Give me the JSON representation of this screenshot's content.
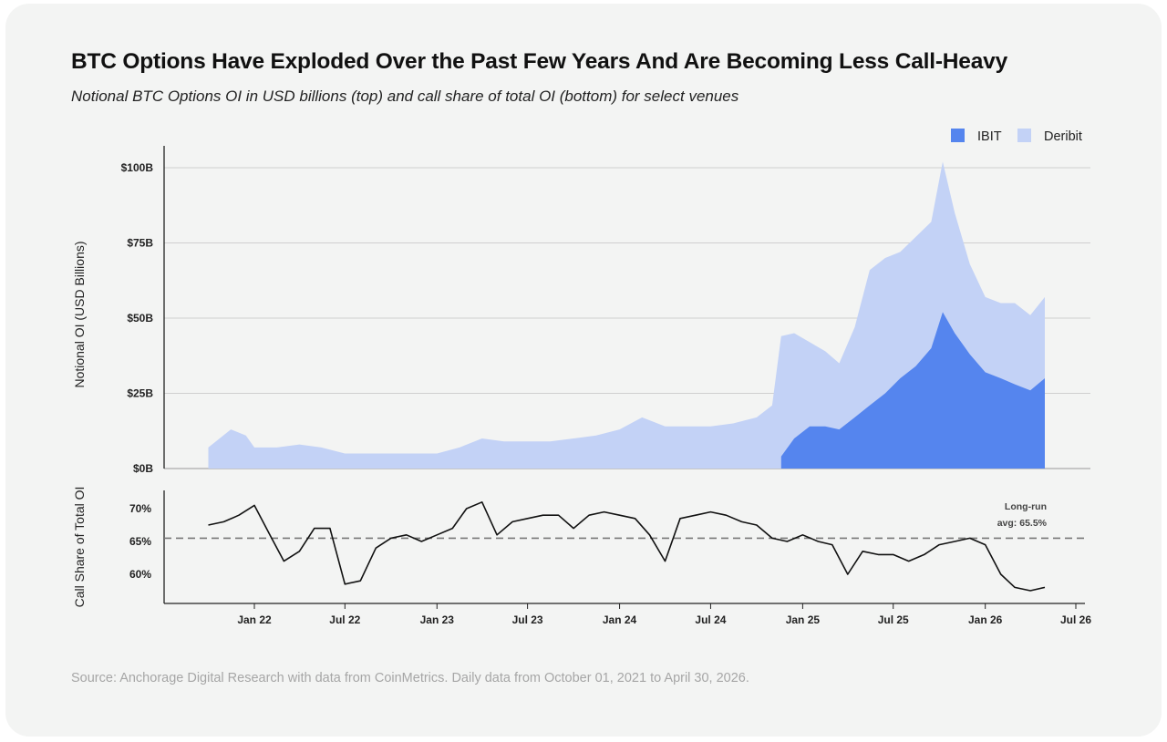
{
  "header": {
    "title": "BTC Options Have Exploded Over the Past Few Years And Are Becoming Less Call-Heavy",
    "subtitle": "Notional BTC Options OI in USD billions (top) and call share of total OI (bottom) for select venues"
  },
  "footer": {
    "source": "Source: Anchorage Digital Research with data from CoinMetrics. Daily data from October 01, 2021 to April 30, 2026."
  },
  "chart_data": [
    {
      "type": "area",
      "stacked": true,
      "ylabel": "Notional OI (USD Billions)",
      "ylim": [
        0,
        100
      ],
      "y_tick_labels": [
        "$0B",
        "$25B",
        "$50B",
        "$75B",
        "$100B"
      ],
      "y_ticks": [
        0,
        25,
        50,
        75,
        100
      ],
      "grid": true,
      "legend": "top-right",
      "colors": {
        "IBIT": "#5585ee",
        "Deribit": "#c3d2f6"
      },
      "x": [
        "2021-10-01",
        "2021-11-15",
        "2021-12-15",
        "2022-01-01",
        "2022-02-15",
        "2022-04-01",
        "2022-05-15",
        "2022-07-01",
        "2022-08-15",
        "2022-10-01",
        "2022-11-15",
        "2023-01-01",
        "2023-02-15",
        "2023-04-01",
        "2023-05-15",
        "2023-07-01",
        "2023-08-15",
        "2023-10-01",
        "2023-11-15",
        "2024-01-01",
        "2024-02-15",
        "2024-04-01",
        "2024-05-15",
        "2024-07-01",
        "2024-08-15",
        "2024-10-01",
        "2024-11-01",
        "2024-11-19",
        "2024-12-15",
        "2025-01-15",
        "2025-02-15",
        "2025-03-15",
        "2025-04-15",
        "2025-05-15",
        "2025-06-15",
        "2025-07-15",
        "2025-08-15",
        "2025-09-15",
        "2025-10-08",
        "2025-11-01",
        "2025-12-01",
        "2026-01-01",
        "2026-02-01",
        "2026-03-01",
        "2026-04-01",
        "2026-04-30"
      ],
      "series": [
        {
          "name": "IBIT",
          "values": [
            null,
            null,
            null,
            null,
            null,
            null,
            null,
            null,
            null,
            null,
            null,
            null,
            null,
            null,
            null,
            null,
            null,
            null,
            null,
            null,
            null,
            null,
            null,
            null,
            null,
            null,
            null,
            4,
            10,
            14,
            14,
            13,
            17,
            21,
            25,
            30,
            34,
            40,
            52,
            45,
            38,
            32,
            30,
            28,
            26,
            30
          ]
        },
        {
          "name": "Deribit",
          "values": [
            7,
            13,
            11,
            7,
            7,
            8,
            7,
            5,
            5,
            5,
            5,
            5,
            7,
            10,
            9,
            9,
            9,
            10,
            11,
            13,
            17,
            14,
            14,
            14,
            15,
            17,
            21,
            40,
            35,
            28,
            25,
            22,
            30,
            45,
            45,
            42,
            43,
            42,
            50,
            40,
            30,
            25,
            25,
            27,
            25,
            27
          ]
        }
      ]
    },
    {
      "type": "line",
      "ylabel": "Call Share of Total OI",
      "ylim": [
        56,
        72
      ],
      "y_tick_labels": [
        "60%",
        "65%",
        "70%"
      ],
      "y_ticks": [
        60,
        65,
        70
      ],
      "x_tick_labels": [
        "Jan 22",
        "Jul 22",
        "Jan 23",
        "Jul 23",
        "Jan 24",
        "Jul 24",
        "Jan 25",
        "Jul 25",
        "Jan 26",
        "Jul 26"
      ],
      "x_ticks": [
        "2022-01-01",
        "2022-07-01",
        "2023-01-01",
        "2023-07-01",
        "2024-01-01",
        "2024-07-01",
        "2025-01-01",
        "2025-07-01",
        "2026-01-01",
        "2026-07-01"
      ],
      "reference_line": {
        "value": 65.5,
        "label_line1": "Long-run",
        "label_line2": "avg: 65.5%",
        "style": "dashed"
      },
      "x": [
        "2021-10-01",
        "2021-11-01",
        "2021-12-01",
        "2022-01-01",
        "2022-02-01",
        "2022-03-01",
        "2022-04-01",
        "2022-05-01",
        "2022-06-01",
        "2022-07-01",
        "2022-08-01",
        "2022-09-01",
        "2022-10-01",
        "2022-11-01",
        "2022-12-01",
        "2023-01-01",
        "2023-02-01",
        "2023-03-01",
        "2023-04-01",
        "2023-05-01",
        "2023-06-01",
        "2023-07-01",
        "2023-08-01",
        "2023-09-01",
        "2023-10-01",
        "2023-11-01",
        "2023-12-01",
        "2024-01-01",
        "2024-02-01",
        "2024-03-01",
        "2024-04-01",
        "2024-05-01",
        "2024-06-01",
        "2024-07-01",
        "2024-08-01",
        "2024-09-01",
        "2024-10-01",
        "2024-11-01",
        "2024-12-01",
        "2025-01-01",
        "2025-02-01",
        "2025-03-01",
        "2025-04-01",
        "2025-05-01",
        "2025-06-01",
        "2025-07-01",
        "2025-08-01",
        "2025-09-01",
        "2025-10-01",
        "2025-11-01",
        "2025-12-01",
        "2026-01-01",
        "2026-02-01",
        "2026-03-01",
        "2026-04-01",
        "2026-04-30"
      ],
      "series": [
        {
          "name": "Call share",
          "values": [
            67.5,
            68,
            69,
            70.5,
            66,
            62,
            63.5,
            67,
            67,
            58.5,
            59,
            64,
            65.5,
            66,
            65,
            66,
            67,
            70,
            71,
            66,
            68,
            68.5,
            69,
            69,
            67,
            69,
            69.5,
            69,
            68.5,
            66,
            62,
            68.5,
            69,
            69.5,
            69,
            68,
            67.5,
            65.5,
            65,
            66,
            65,
            64.5,
            60,
            63.5,
            63,
            63,
            62,
            63,
            64.5,
            65,
            65.5,
            64.5,
            60,
            58,
            57.5,
            58
          ]
        }
      ]
    }
  ]
}
